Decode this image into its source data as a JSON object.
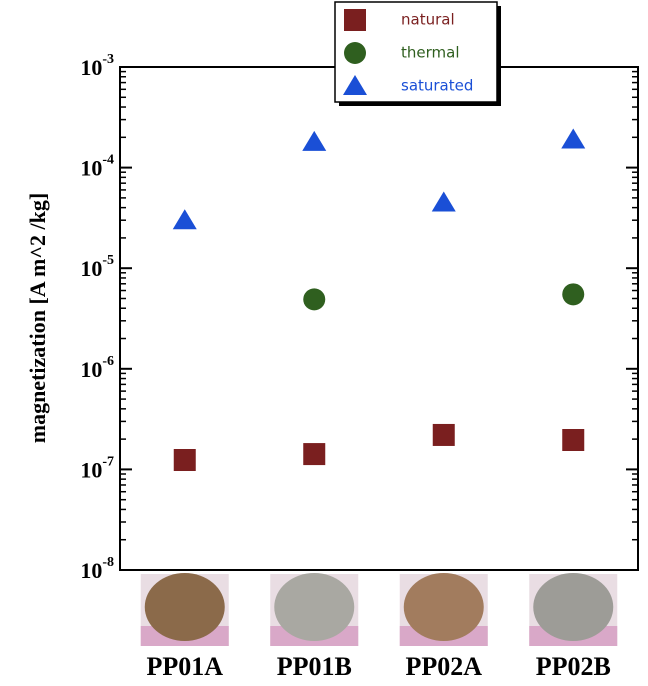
{
  "chart_data": {
    "type": "scatter",
    "y_label": "magnetization [A m^2 /kg]",
    "categories": [
      "PP01A",
      "PP01B",
      "PP02A",
      "PP02B"
    ],
    "series": [
      {
        "name": "natural",
        "color": "#7a1f1f",
        "marker": "square",
        "values": [
          1.24e-07,
          1.42e-07,
          2.2e-07,
          1.96e-07
        ]
      },
      {
        "name": "thermal",
        "color": "#2f5f1f",
        "marker": "circle",
        "values": [
          null,
          4.9e-06,
          null,
          5.5e-06
        ]
      },
      {
        "name": "saturated",
        "color": "#1a4fd6",
        "marker": "triangle",
        "values": [
          3e-05,
          0.00018,
          4.5e-05,
          0.00019
        ]
      }
    ],
    "log_y": true,
    "ylim": [
      1e-08,
      0.001
    ],
    "yticks": [
      {
        "value": 1e-08,
        "label": "10-8"
      },
      {
        "value": 1e-07,
        "label": "10-7"
      },
      {
        "value": 1e-06,
        "label": "10-6"
      },
      {
        "value": 1e-05,
        "label": "10-5"
      },
      {
        "value": 0.0001,
        "label": "10-4"
      },
      {
        "value": 0.001,
        "label": "10-3"
      }
    ],
    "legend": "top"
  }
}
